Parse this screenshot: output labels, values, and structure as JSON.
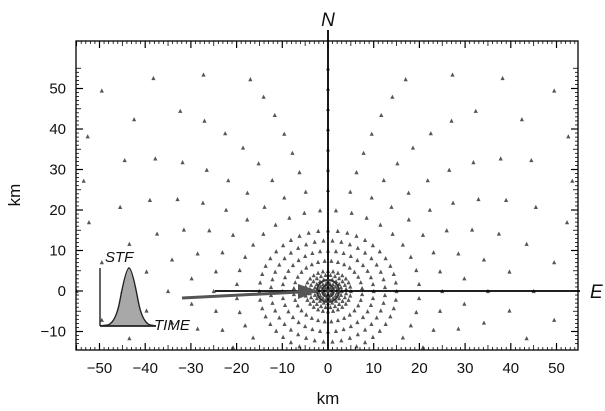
{
  "diagram": {
    "x_axis": {
      "label": "km",
      "range": [
        -55,
        55
      ],
      "ticks": [
        -50,
        -40,
        -30,
        -20,
        -10,
        0,
        10,
        20,
        30,
        40,
        50
      ],
      "tick_labels": [
        "−50",
        "−40",
        "−30",
        "−20",
        "−10",
        "0",
        "10",
        "20",
        "30",
        "40",
        "50"
      ]
    },
    "y_axis": {
      "label": "km",
      "range": [
        -13,
        55
      ],
      "ticks": [
        -10,
        0,
        10,
        20,
        30,
        40,
        50
      ],
      "tick_labels": [
        "−10",
        "0",
        "10",
        "20",
        "30",
        "40",
        "50"
      ]
    },
    "compass": {
      "north": "N",
      "east": "E"
    },
    "stf_inset": {
      "stf_label": "STF",
      "time_label": "TIME"
    },
    "source": {
      "x": 0,
      "y": 0
    },
    "station_rings": {
      "radii": [
        1,
        2,
        3,
        4,
        5,
        7.5,
        10,
        12.5,
        15,
        20,
        25,
        30,
        35,
        40,
        45,
        50,
        55,
        60,
        65,
        70,
        75
      ],
      "counts": [
        12,
        16,
        20,
        24,
        28,
        32,
        36,
        40,
        44,
        36,
        32,
        30,
        28,
        26,
        24,
        22,
        20,
        20,
        20,
        20,
        20
      ]
    },
    "colors": {
      "station": "#555555",
      "arrow": "#555555",
      "stf_fill": "#a8a8a8",
      "axes": "#000000"
    }
  }
}
